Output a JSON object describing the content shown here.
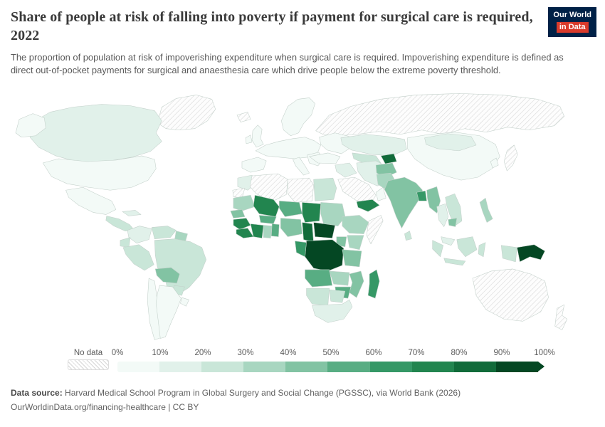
{
  "header": {
    "title": "Share of people at risk of falling into poverty if payment for surgical care is required, 2022",
    "subtitle": "The proportion of population at risk of impoverishing expenditure when surgical care is required. Impoverishing expenditure is defined as direct out-of-pocket payments for surgical and anaesthesia care which drive people below the extreme poverty threshold.",
    "logo": {
      "line1": "Our World",
      "line2": "in Data"
    }
  },
  "legend": {
    "no_data_label": "No data",
    "tick_labels": [
      "0%",
      "10%",
      "20%",
      "30%",
      "40%",
      "50%",
      "60%",
      "70%",
      "80%",
      "90%",
      "100%"
    ]
  },
  "footer": {
    "source_label": "Data source:",
    "source_text": "Harvard Medical School Program in Global Surgery and Social Change (PGSSC), via World Bank (2026)",
    "link_text": "OurWorldinData.org/financing-healthcare | CC BY"
  },
  "chart_data": {
    "type": "choropleth",
    "title": "Share of people at risk of falling into poverty if payment for surgical care is required",
    "year": 2022,
    "unit": "%",
    "scale_min": 0,
    "scale_max": 100,
    "bin_size": 10,
    "colors": [
      "#f3faf7",
      "#e1f1ea",
      "#c9e6d8",
      "#a8d6c0",
      "#82c3a3",
      "#58ad83",
      "#359866",
      "#22854f",
      "#116b3a",
      "#044723"
    ],
    "no_data_style": "hatched",
    "countries": {
      "Greenland": null,
      "Canada": 12,
      "United States": 2,
      "Mexico": 8,
      "Guatemala": 25,
      "Cuba": 10,
      "Colombia": 18,
      "Venezuela": 22,
      "Guyana": 30,
      "Ecuador": 25,
      "Peru": 25,
      "Brazil": 20,
      "Bolivia": 48,
      "Paraguay": 28,
      "Chile": 3,
      "Argentina": 5,
      "Uruguay": 5,
      "Iceland": null,
      "United Kingdom": 1,
      "Ireland": 1,
      "Norway": 1,
      "Germany": 1,
      "Spain": 2,
      "Italy": 2,
      "Greece": 4,
      "Ukraine": 6,
      "Russia": null,
      "Kazakhstan": 12,
      "Uzbekistan": 20,
      "Tajikistan": 85,
      "Turkey": 5,
      "Iraq": 18,
      "Iran": 12,
      "Saudi Arabia": null,
      "Yemen": 75,
      "Oman": 8,
      "Afghanistan": 40,
      "Pakistan": 30,
      "India": 45,
      "Bangladesh": 62,
      "Sri Lanka": 28,
      "Myanmar": 45,
      "China": 5,
      "Mongolia": 10,
      "South Korea": 8,
      "Japan": null,
      "Thailand": 10,
      "Vietnam": 28,
      "Cambodia": 45,
      "Malaysia": 12,
      "Indonesia": 25,
      "Philippines": 30,
      "Papua New Guinea": 90,
      "Australia": null,
      "New Zealand": null,
      "Morocco": 15,
      "Western Sahara": null,
      "Algeria": null,
      "Libya": null,
      "Egypt": 20,
      "Mauritania": 35,
      "Mali": 75,
      "Niger": 50,
      "Chad": 75,
      "Sudan": 35,
      "Senegal": 40,
      "Guinea": 75,
      "Sierra Leone": 70,
      "Cote d'Ivoire": 70,
      "Ghana": 32,
      "Benin": 50,
      "Burkina Faso": 55,
      "Nigeria": 45,
      "Cameroon": 80,
      "Central African Republic": 90,
      "Ethiopia": 30,
      "Somalia": null,
      "Kenya": 35,
      "Uganda": 40,
      "Democratic Republic of Congo": 95,
      "Congo": 60,
      "Tanzania": 40,
      "Angola": 50,
      "Zambia": 35,
      "Mozambique": 45,
      "Zimbabwe": 55,
      "Madagascar": 60,
      "Namibia": 25,
      "Botswana": 20,
      "South Africa": 15
    }
  }
}
